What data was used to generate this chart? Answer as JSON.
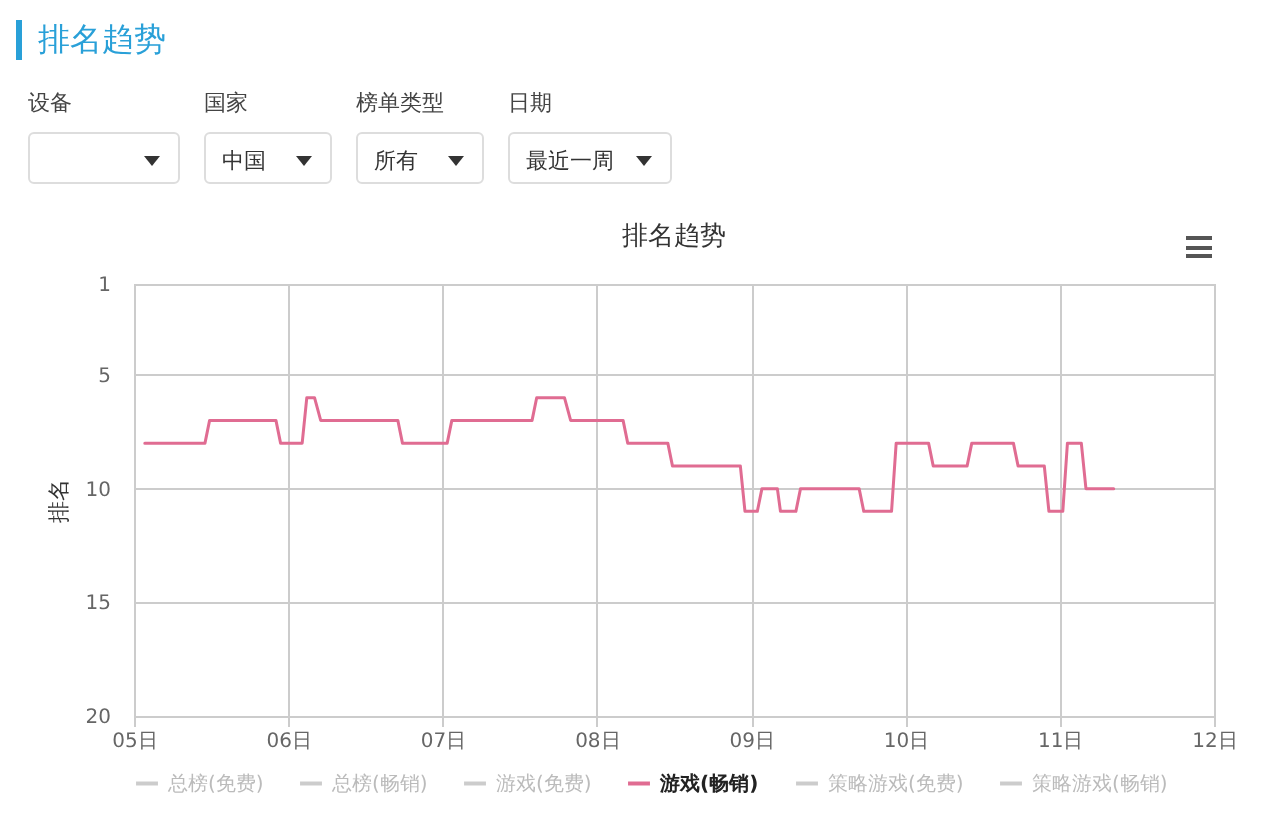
{
  "chart_data": {
    "type": "line",
    "title": "排名趋势",
    "ylabel": "排名",
    "annotations": [
      "排名趋势",
      "设备",
      "国家",
      "中国",
      "榜单类型",
      "所有",
      "日期",
      "最近一周"
    ],
    "xlim": [
      5,
      12
    ],
    "xticks": [
      {
        "value": 5,
        "label": "05日"
      },
      {
        "value": 6,
        "label": "06日"
      },
      {
        "value": 7,
        "label": "07日"
      },
      {
        "value": 8,
        "label": "08日"
      },
      {
        "value": 9,
        "label": "09日"
      },
      {
        "value": 10,
        "label": "10日"
      },
      {
        "value": 11,
        "label": "11日"
      },
      {
        "value": 12,
        "label": "12日"
      }
    ],
    "ylim": [
      20,
      1
    ],
    "yticks": [
      1,
      5,
      10,
      15,
      20
    ],
    "grid": true,
    "legend": "bottom",
    "marker": "none",
    "line_style": "solid",
    "series": [
      {
        "name": "总榜(免费)",
        "color": "#cccccc"
      },
      {
        "name": "总榜(畅销)",
        "color": "#cccccc"
      },
      {
        "name": "游戏(免费)",
        "color": "#cccccc"
      },
      {
        "name": "游戏(畅销)",
        "color": "#e06c92",
        "x": [
          5.07,
          5.46,
          5.49,
          5.92,
          5.95,
          6.09,
          6.12,
          6.17,
          6.21,
          6.71,
          6.74,
          7.03,
          7.06,
          7.58,
          7.61,
          7.79,
          7.83,
          8.17,
          8.2,
          8.46,
          8.49,
          8.93,
          8.96,
          9.04,
          9.07,
          9.17,
          9.19,
          9.29,
          9.32,
          9.7,
          9.73,
          9.91,
          9.94,
          10.15,
          10.18,
          10.4,
          10.43,
          10.7,
          10.73,
          10.9,
          10.93,
          11.02,
          11.05,
          11.14,
          11.17,
          11.35
        ],
        "values": [
          8,
          8,
          7,
          7,
          8,
          8,
          6,
          6,
          7,
          7,
          8,
          8,
          7,
          7,
          6,
          6,
          7,
          7,
          8,
          8,
          9,
          9,
          11,
          11,
          10,
          10,
          11,
          11,
          10,
          10,
          11,
          11,
          8,
          8,
          9,
          9,
          8,
          8,
          9,
          9,
          11,
          11,
          8,
          8,
          10,
          10
        ]
      },
      {
        "name": "策略游戏(免费)",
        "color": "#cccccc"
      },
      {
        "name": "策略游戏(畅销)",
        "color": "#cccccc"
      }
    ]
  }
}
